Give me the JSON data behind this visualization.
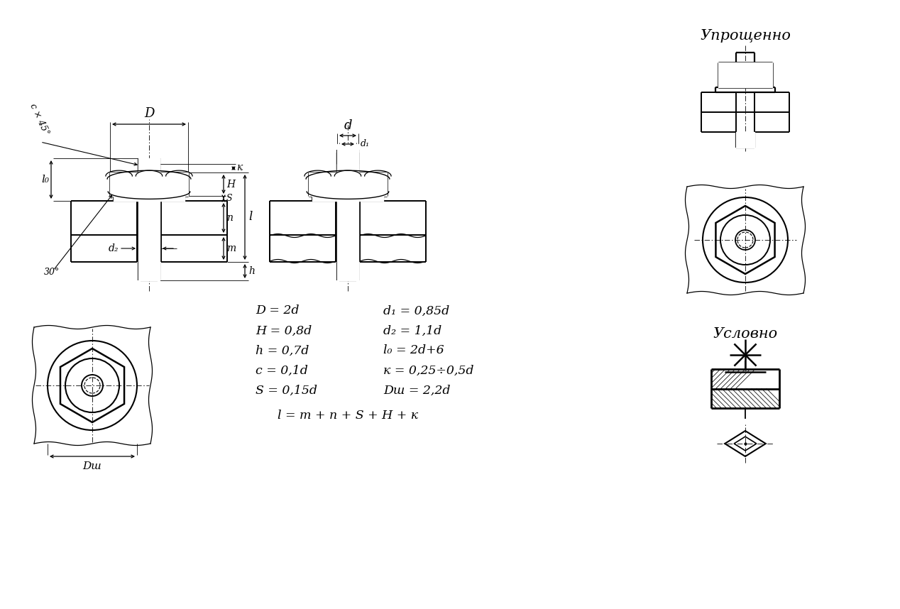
{
  "title_uproshenno": "Упрощенно",
  "title_uslovno": "Условно",
  "formulas_left": [
    "D = 2d",
    "H = 0,8d",
    "h = 0,7d",
    "c = 0,1d",
    "S = 0,15d"
  ],
  "formulas_right": [
    "d₁ = 0,85d",
    "d₂ = 1,1d",
    "l₀ = 2d+6",
    "к = 0,25÷0,5d",
    "Dш = 2,2d"
  ],
  "formula_bottom": "l = m + n + S + H + к",
  "bg_color": "#ffffff",
  "line_color": "#000000"
}
